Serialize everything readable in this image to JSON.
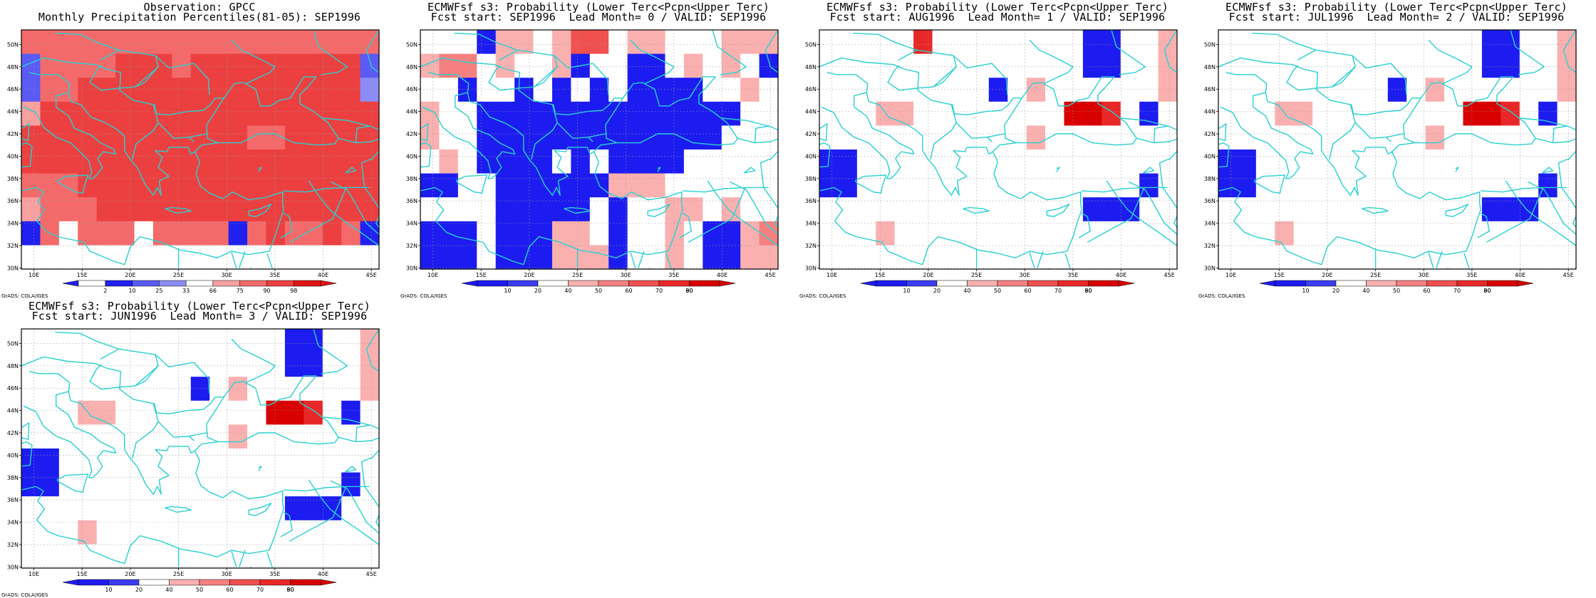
{
  "map": {
    "lat_labels": [
      "30N",
      "32N",
      "34N",
      "36N",
      "38N",
      "40N",
      "42N",
      "44N",
      "46N",
      "48N",
      "50N"
    ],
    "lon_labels": [
      "10E",
      "15E",
      "20E",
      "25E",
      "30E",
      "35E",
      "40E",
      "45E"
    ],
    "grid_cols": 19,
    "grid_rows": 10,
    "coast_color": "#2ad0d0",
    "credit": "GrADS: COLA/IGES"
  },
  "colors": {
    "obs": [
      "#ffffff",
      "#2020f0",
      "#5a5af4",
      "#8c8cf6",
      "#ffffff",
      "#f9a0a0",
      "#f46a6a",
      "#ec4040",
      "#e01414"
    ],
    "prob": [
      "#1c1cf0",
      "#3c3cf2",
      "#ffffff",
      "#fbb0b0",
      "#f68080",
      "#f15050",
      "#e82828",
      "#d80000"
    ]
  },
  "panels": [
    {
      "id": "obs",
      "title1": "Observation: GPCC",
      "title2": "Monthly Precipitation Percentiles(81-05): SEP1996",
      "colorbar_labels": [
        "2",
        "10",
        "25",
        "33",
        "66",
        "75",
        "90",
        "98"
      ],
      "palette": "obs",
      "grid": [
        "6666666666666666666",
        "2666677767777777772",
        "2667777777777777773",
        "5777777777777777777",
        "7777777777776677777",
        "7777777777777777777",
        "6667777777777777777",
        "5666777777777777777",
        "1646664666616766761",
        "0000000000000000000"
      ],
      "grid_note": "row 0 = north (50N); digits index into palette"
    },
    {
      "id": "lead0",
      "title1": "ECMWFsf s3: Probability (Lower Terc<Pcpn<Upper Terc)",
      "title2": "Fcst start: SEP1996  Lead Month= 0 / VALID: SEP1996",
      "colorbar_labels": [
        "10",
        "20",
        "40",
        "50",
        "60",
        "70",
        "80",
        "90"
      ],
      "palette": "prob",
      "grid": [
        "2220332355233222333",
        "3442322302200232320",
        "2202202020200002232",
        "3220000000000000022",
        "3220000000000000222",
        "2320000202000022222",
        "0022000000333222222",
        "2222000002022332322",
        "0002000332022320034",
        "0002000333022320033"
      ]
    },
    {
      "id": "lead1",
      "title1": "ECMWFsf s3: Probability (Lower Terc<Pcpn<Upper Terc)",
      "title2": "Fcst start: AUG1996  Lead Month= 1 / VALID: SEP1996",
      "colorbar_labels": [
        "10",
        "20",
        "40",
        "50",
        "60",
        "70",
        "80",
        "90"
      ],
      "palette": "prob",
      "grid": [
        "2222262222222200223",
        "2222222222222200223",
        "2222222220232222223",
        "2223322222222776202",
        "2222222222232222222",
        "0022222222222222222",
        "0022222222222222202",
        "2222222222222200022",
        "2223222222222222222",
        "2222222222222222222"
      ]
    },
    {
      "id": "lead2",
      "title1": "ECMWFsf s3: Probability (Lower Terc<Pcpn<Upper Terc)",
      "title2": "Fcst start: JUL1996  Lead Month= 2 / VALID: SEP1996",
      "colorbar_labels": [
        "10",
        "20",
        "40",
        "50",
        "60",
        "70",
        "80",
        "90"
      ],
      "palette": "prob",
      "grid": [
        "2222222222222200223",
        "2222222222222200223",
        "2222222220232222223",
        "2223322222222776202",
        "2222222222232222222",
        "0022222222222222222",
        "0022222222222222202",
        "2222222222222200022",
        "2223222222222222222",
        "2222222222222222222"
      ]
    },
    {
      "id": "lead3",
      "title1": "ECMWFsf s3: Probability (Lower Terc<Pcpn<Upper Terc)",
      "title2": "Fcst start: JUN1996  Lead Month= 3 / VALID: SEP1996",
      "colorbar_labels": [
        "10",
        "20",
        "40",
        "50",
        "60",
        "70",
        "80",
        "90"
      ],
      "palette": "prob",
      "grid": [
        "2222222222222200223",
        "2222222222222200223",
        "2222222220232222223",
        "2223322222222776202",
        "2222222222232222222",
        "0022222222222222222",
        "0022222222222222202",
        "2222222222222200022",
        "2223222222222222222",
        "2222222222222222222"
      ]
    }
  ]
}
